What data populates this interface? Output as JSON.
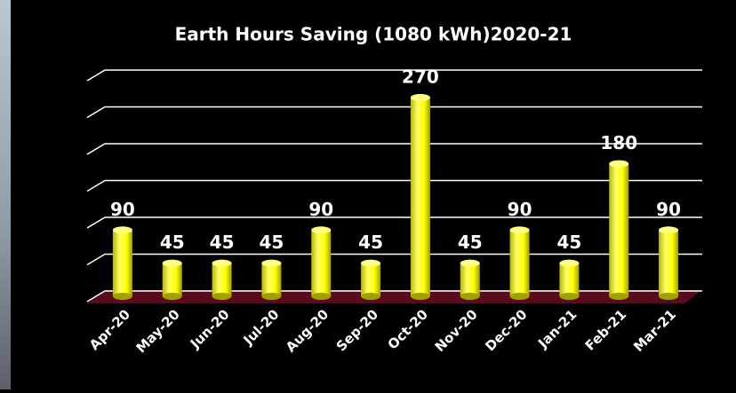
{
  "chart_data": {
    "type": "bar",
    "title": "Earth Hours Saving (1080 kWh)2020-21",
    "categories": [
      "Apr-20",
      "May-20",
      "Jun-20",
      "Jul-20",
      "Aug-20",
      "Sep-20",
      "Oct-20",
      "Nov-20",
      "Dec-20",
      "Jan-21",
      "Feb-21",
      "Mar-21"
    ],
    "values": [
      90,
      45,
      45,
      45,
      90,
      45,
      270,
      45,
      90,
      45,
      180,
      90
    ],
    "color": "#ffff00",
    "ylim": [
      0,
      300
    ],
    "yticks": [
      0,
      50,
      100,
      150,
      200,
      250,
      300
    ],
    "grid": true
  }
}
